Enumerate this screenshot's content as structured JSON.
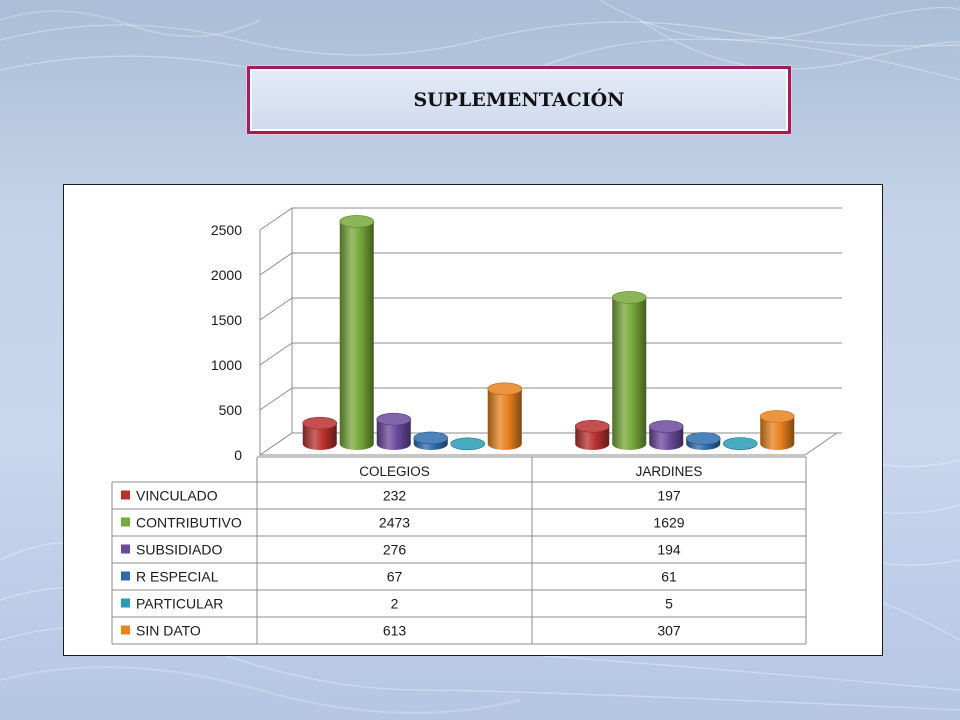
{
  "slide": {
    "title": "SUPLEMENTACIÓN"
  },
  "chart_data": {
    "type": "bar",
    "style": "3d-cylinder",
    "title": "",
    "categories": [
      "COLEGIOS",
      "JARDINES"
    ],
    "series": [
      {
        "name": "VINCULADO",
        "values": [
          232,
          197
        ],
        "color": "#b8312f"
      },
      {
        "name": "CONTRIBUTIVO",
        "values": [
          2473,
          1629
        ],
        "color": "#77a83a"
      },
      {
        "name": "SUBSIDIADO",
        "values": [
          276,
          194
        ],
        "color": "#6a4a9c"
      },
      {
        "name": "R ESPECIAL",
        "values": [
          67,
          61
        ],
        "color": "#2f6cae"
      },
      {
        "name": "PARTICULAR",
        "values": [
          2,
          5
        ],
        "color": "#2a9bb4"
      },
      {
        "name": "SIN DATO",
        "values": [
          613,
          307
        ],
        "color": "#e8821f"
      }
    ],
    "yticks": [
      0,
      500,
      1000,
      1500,
      2000,
      2500
    ],
    "ylim": [
      0,
      2500
    ],
    "grid": true,
    "legend": "data-table-below"
  }
}
